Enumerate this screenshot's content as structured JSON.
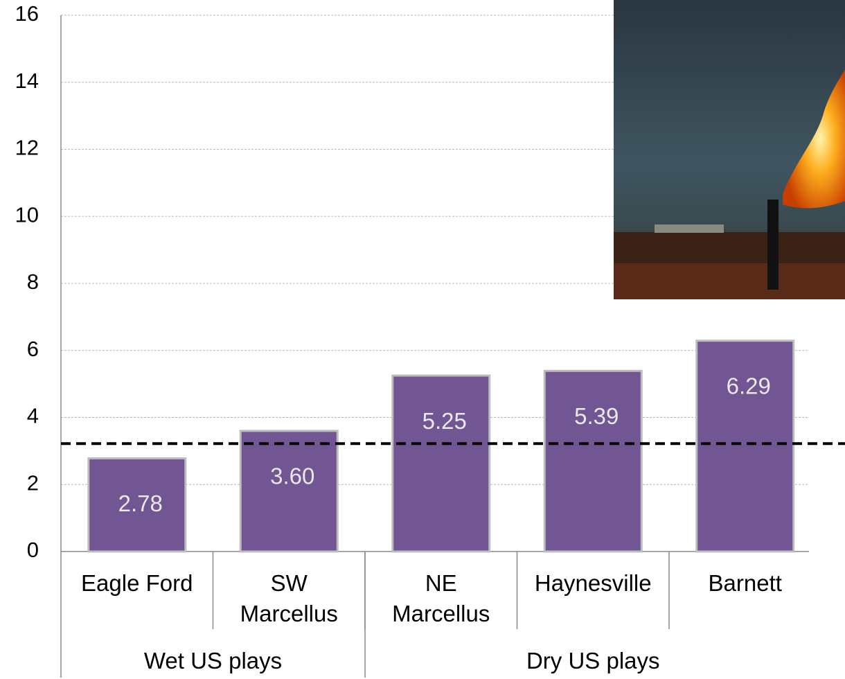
{
  "chart_data": {
    "type": "bar",
    "categories": [
      "Eagle Ford",
      "SW\nMarcellus",
      "NE\nMarcellus",
      "Haynesville",
      "Barnett"
    ],
    "groups": [
      {
        "label": "Wet US plays",
        "count": 2
      },
      {
        "label": "Dry US plays",
        "count": 3
      }
    ],
    "values": [
      2.78,
      3.6,
      5.25,
      5.39,
      6.29
    ],
    "value_labels": [
      "2.78",
      "3.60",
      "5.25",
      "5.39",
      "6.29"
    ],
    "color": "#725593",
    "reference_value": 3.22,
    "ylim": [
      0,
      16
    ],
    "yticks": [
      0,
      2,
      4,
      6,
      8,
      10,
      12,
      14,
      16
    ],
    "grid": true
  }
}
